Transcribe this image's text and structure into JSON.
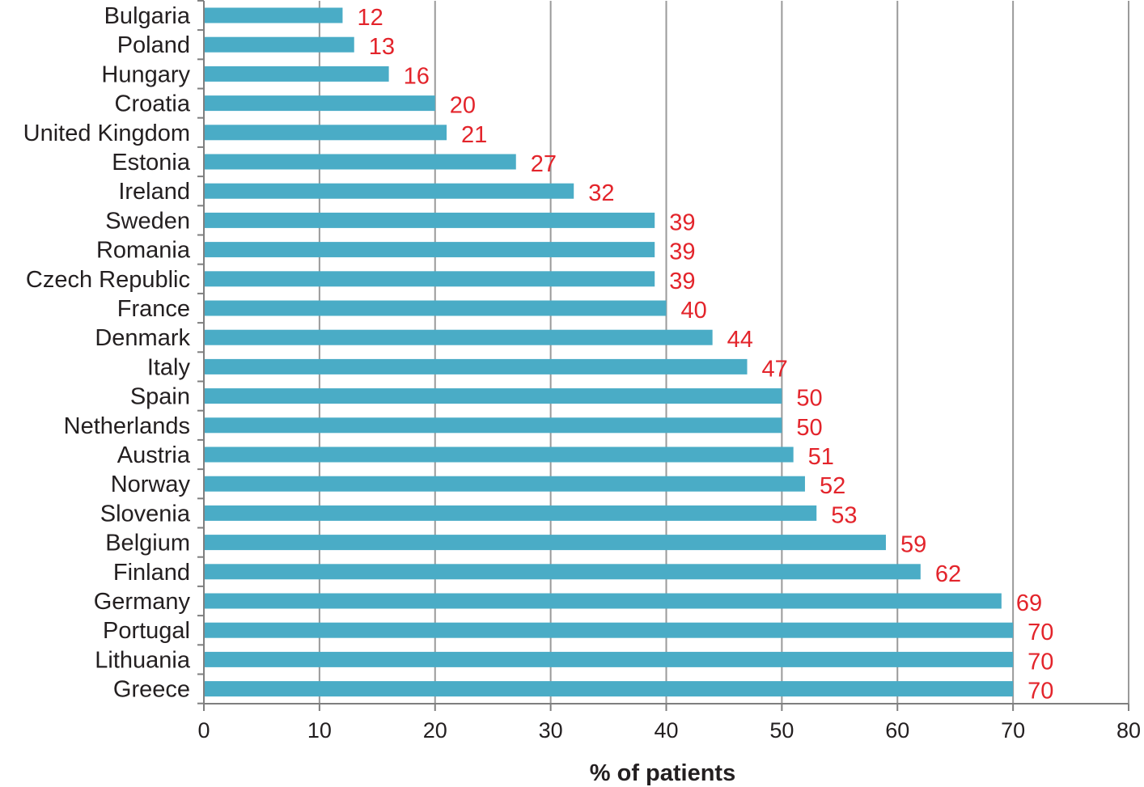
{
  "chart_data": {
    "type": "bar",
    "orientation": "horizontal",
    "categories": [
      "Bulgaria",
      "Poland",
      "Hungary",
      "Croatia",
      "United Kingdom",
      "Estonia",
      "Ireland",
      "Sweden",
      "Romania",
      "Czech Republic",
      "France",
      "Denmark",
      "Italy",
      "Spain",
      "Netherlands",
      "Austria",
      "Norway",
      "Slovenia",
      "Belgium",
      "Finland",
      "Germany",
      "Portugal",
      "Lithuania",
      "Greece"
    ],
    "values": [
      12,
      13,
      16,
      20,
      21,
      27,
      32,
      39,
      39,
      39,
      40,
      44,
      47,
      50,
      50,
      51,
      52,
      53,
      59,
      62,
      69,
      70,
      70,
      70
    ],
    "data_labels": [
      "12",
      "13",
      "16",
      "20",
      "21",
      "27",
      "32",
      "39",
      "39",
      "39",
      "40",
      "44",
      "47",
      "50",
      "50",
      "51",
      "52",
      "53",
      "59",
      "62",
      "69",
      "70",
      "70",
      "70"
    ],
    "xlabel": "% of patients",
    "ylabel": "",
    "title": "",
    "xlim": [
      0,
      80
    ],
    "xticks": [
      0,
      10,
      20,
      30,
      40,
      50,
      60,
      70,
      80
    ],
    "xtick_labels": [
      "0",
      "10",
      "20",
      "30",
      "40",
      "50",
      "60",
      "70",
      "80"
    ],
    "grid": "vertical",
    "legend": "none",
    "colors": {
      "bar": "#4aacc6",
      "data_label": "#e3242b",
      "grid": "#9a9a9a",
      "axis": "#7f7f7f",
      "text": "#231f20"
    }
  }
}
